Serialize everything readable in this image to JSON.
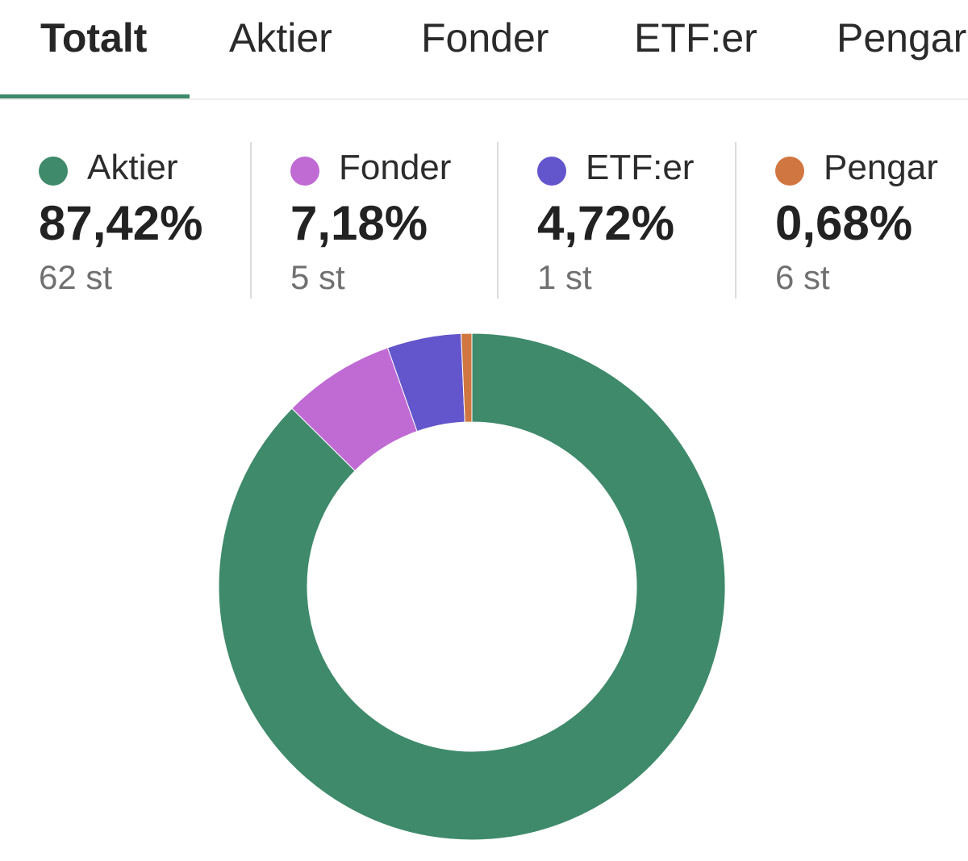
{
  "tabs": [
    {
      "label": "Totalt",
      "active": true
    },
    {
      "label": "Aktier",
      "active": false
    },
    {
      "label": "Fonder",
      "active": false
    },
    {
      "label": "ETF:er",
      "active": false
    },
    {
      "label": "Pengar",
      "active": false
    }
  ],
  "stats": [
    {
      "label": "Aktier",
      "percent": "87,42%",
      "count": "62 st",
      "color": "#3e8a6a"
    },
    {
      "label": "Fonder",
      "percent": "7,18%",
      "count": "5 st",
      "color": "#c06ad4"
    },
    {
      "label": "ETF:er",
      "percent": "4,72%",
      "count": "1 st",
      "color": "#6356cc"
    },
    {
      "label": "Pengar",
      "percent": "0,68%",
      "count": "6 st",
      "color": "#d07640"
    }
  ],
  "chart_data": {
    "type": "pie",
    "style": "donut",
    "categories": [
      "Aktier",
      "Fonder",
      "ETF:er",
      "Pengar"
    ],
    "values": [
      87.42,
      7.18,
      4.72,
      0.68
    ],
    "colors": [
      "#3e8a6a",
      "#c06ad4",
      "#6356cc",
      "#d07640"
    ],
    "start": "top",
    "direction": "clockwise"
  }
}
